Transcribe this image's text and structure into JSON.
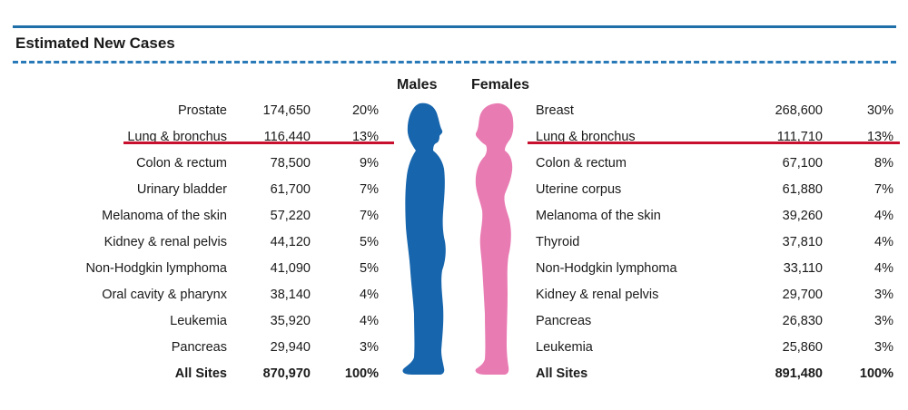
{
  "title": "Estimated New Cases",
  "headers": {
    "males": "Males",
    "females": "Females"
  },
  "colors": {
    "male": "#1665ad",
    "female": "#e97bb3",
    "highlight": "#c8102e",
    "rule": "#1f6fa8"
  },
  "chart_data": {
    "type": "table",
    "title": "Estimated New Cases",
    "highlighted_site": "Lung & bronchus",
    "males": [
      {
        "site": "Prostate",
        "cases": "174,650",
        "pct": "20%"
      },
      {
        "site": "Lung & bronchus",
        "cases": "116,440",
        "pct": "13%"
      },
      {
        "site": "Colon & rectum",
        "cases": "78,500",
        "pct": "9%"
      },
      {
        "site": "Urinary bladder",
        "cases": "61,700",
        "pct": "7%"
      },
      {
        "site": "Melanoma of the skin",
        "cases": "57,220",
        "pct": "7%"
      },
      {
        "site": "Kidney & renal pelvis",
        "cases": "44,120",
        "pct": "5%"
      },
      {
        "site": "Non-Hodgkin lymphoma",
        "cases": "41,090",
        "pct": "5%"
      },
      {
        "site": "Oral cavity & pharynx",
        "cases": "38,140",
        "pct": "4%"
      },
      {
        "site": "Leukemia",
        "cases": "35,920",
        "pct": "4%"
      },
      {
        "site": "Pancreas",
        "cases": "29,940",
        "pct": "3%"
      },
      {
        "site": "All Sites",
        "cases": "870,970",
        "pct": "100%"
      }
    ],
    "females": [
      {
        "site": "Breast",
        "cases": "268,600",
        "pct": "30%"
      },
      {
        "site": "Lung & bronchus",
        "cases": "111,710",
        "pct": "13%"
      },
      {
        "site": "Colon & rectum",
        "cases": "67,100",
        "pct": "8%"
      },
      {
        "site": "Uterine corpus",
        "cases": "61,880",
        "pct": "7%"
      },
      {
        "site": "Melanoma of the skin",
        "cases": "39,260",
        "pct": "4%"
      },
      {
        "site": "Thyroid",
        "cases": "37,810",
        "pct": "4%"
      },
      {
        "site": "Non-Hodgkin lymphoma",
        "cases": "33,110",
        "pct": "4%"
      },
      {
        "site": "Kidney & renal pelvis",
        "cases": "29,700",
        "pct": "3%"
      },
      {
        "site": "Pancreas",
        "cases": "26,830",
        "pct": "3%"
      },
      {
        "site": "Leukemia",
        "cases": "25,860",
        "pct": "3%"
      },
      {
        "site": "All Sites",
        "cases": "891,480",
        "pct": "100%"
      }
    ]
  }
}
